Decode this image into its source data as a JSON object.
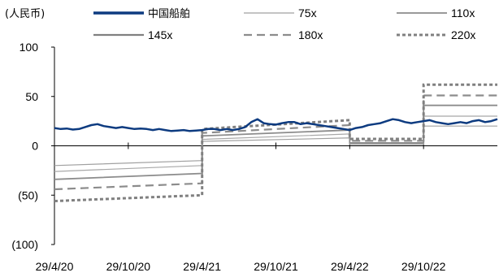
{
  "chart_data": {
    "type": "line",
    "unit_label": "(人民币)",
    "y_ticks": [
      "100",
      "50",
      "0",
      "(50)",
      "(100)"
    ],
    "y_tick_values": [
      100,
      50,
      0,
      -50,
      -100
    ],
    "ylim": [
      -100,
      100
    ],
    "x_ticks": [
      "29/4/20",
      "29/10/20",
      "29/4/21",
      "29/10/21",
      "29/4/22",
      "29/10/22"
    ],
    "x_tick_positions": [
      0,
      6,
      12,
      18,
      24,
      30
    ],
    "xlim": [
      0,
      36
    ],
    "x_unit": "months since 29/4/20",
    "legend": [
      {
        "name": "中国船舶",
        "color": "#0d3b80",
        "dash": "",
        "width": 3.5,
        "cjk": true
      },
      {
        "name": "75x",
        "color": "#a0a0a0",
        "dash": "",
        "width": 1.2
      },
      {
        "name": "110x",
        "color": "#8c8c8c",
        "dash": "",
        "width": 1.8
      },
      {
        "name": "145x",
        "color": "#808080",
        "dash": "",
        "width": 2.2
      },
      {
        "name": "180x",
        "color": "#8c8c8c",
        "dash": "10,6",
        "width": 2.2
      },
      {
        "name": "220x",
        "color": "#808080",
        "dash": "4,3",
        "width": 3
      }
    ],
    "band_breaks": [
      0,
      12,
      24,
      30,
      36
    ],
    "bands": [
      {
        "name": "75x",
        "color": "#a0a0a0",
        "dash": "",
        "width": 1.2,
        "segments": [
          [
            -20,
            -15
          ],
          [
            4.5,
            8
          ],
          [
            1.5,
            1.5
          ],
          [
            20,
            20
          ]
        ]
      },
      {
        "name": "110x",
        "color": "#a8a8a8",
        "dash": "",
        "width": 1.2,
        "segments": [
          [
            -26,
            -20
          ],
          [
            6.5,
            12
          ],
          [
            2,
            2
          ],
          [
            30,
            30
          ]
        ]
      },
      {
        "name": "145x",
        "color": "#8c8c8c",
        "dash": "",
        "width": 1.8,
        "segments": [
          [
            -34,
            -28
          ],
          [
            10,
            16
          ],
          [
            3,
            3
          ],
          [
            41,
            41
          ]
        ]
      },
      {
        "name": "180x",
        "color": "#8c8c8c",
        "dash": "10,6",
        "width": 2.2,
        "segments": [
          [
            -44,
            -38
          ],
          [
            13,
            21
          ],
          [
            5,
            5
          ],
          [
            51,
            51
          ]
        ]
      },
      {
        "name": "220x",
        "color": "#808080",
        "dash": "4,3",
        "width": 3,
        "segments": [
          [
            -56,
            -50
          ],
          [
            17,
            26
          ],
          [
            7,
            7
          ],
          [
            62,
            62
          ]
        ]
      }
    ],
    "stock_series": {
      "name": "中国船舶",
      "color": "#0d3b80",
      "x": [
        0,
        0.5,
        1,
        1.5,
        2,
        2.5,
        3,
        3.5,
        4,
        4.5,
        5,
        5.5,
        6,
        6.5,
        7,
        7.5,
        8,
        8.5,
        9,
        9.5,
        10,
        10.5,
        11,
        11.5,
        12,
        12.5,
        13,
        13.5,
        14,
        14.5,
        15,
        15.5,
        16,
        16.5,
        17,
        17.5,
        18,
        18.5,
        19,
        19.5,
        20,
        20.5,
        21,
        21.5,
        22,
        22.5,
        23,
        23.5,
        24,
        24.5,
        25,
        25.5,
        26,
        26.5,
        27,
        27.5,
        28,
        28.5,
        29,
        29.5,
        30,
        30.5,
        31,
        31.5,
        32,
        32.5,
        33,
        33.5,
        34,
        34.5,
        35,
        35.5,
        36
      ],
      "y": [
        18,
        17,
        17.5,
        16.5,
        17,
        19,
        21,
        22,
        20,
        19,
        18,
        19,
        18,
        17,
        17.5,
        17,
        16,
        17,
        16,
        15,
        15.5,
        16,
        15,
        15.5,
        16,
        17,
        17,
        16,
        17,
        16,
        17,
        19,
        24,
        27,
        23,
        22,
        21.5,
        23,
        24,
        24,
        22,
        23,
        22,
        21,
        20,
        19,
        18,
        17,
        16,
        18,
        19,
        21,
        22,
        23,
        25,
        27,
        26,
        24,
        23,
        24,
        25,
        26,
        24,
        23,
        22,
        23,
        24,
        23,
        25,
        26,
        24,
        25,
        27
      ]
    }
  }
}
